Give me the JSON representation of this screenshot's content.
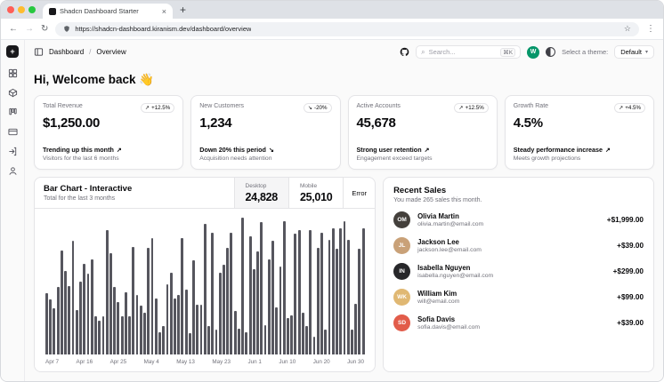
{
  "browser": {
    "tab_title": "Shadcn Dashboard Starter",
    "tab_close": "×",
    "new_tab": "+",
    "back": "←",
    "forward": "→",
    "reload": "↻",
    "bookmark": "☆",
    "menu": "⋮",
    "url": "https://shadcn-dashboard.kiranism.dev/dashboard/overview"
  },
  "rail": {
    "logo_glyph": "+"
  },
  "header": {
    "breadcrumb_section": "Dashboard",
    "breadcrumb_sep": "/",
    "breadcrumb_page": "Overview",
    "search_glyph": "⌕",
    "search_placeholder": "Search...",
    "search_shortcut": "⌘K",
    "avatar_initial": "W",
    "theme_label": "Select a theme:",
    "theme_value": "Default",
    "theme_caret": "▾"
  },
  "greeting": "Hi, Welcome back 👋",
  "stats": [
    {
      "label": "Total Revenue",
      "badge": "+12.5%",
      "trend_icon": "↗",
      "value": "$1,250.00",
      "line1": "Trending up this month",
      "line2": "Visitors for the last 6 months"
    },
    {
      "label": "New Customers",
      "badge": "-20%",
      "trend_icon": "↘",
      "value": "1,234",
      "line1": "Down 20% this period",
      "line2": "Acquisition needs attention"
    },
    {
      "label": "Active Accounts",
      "badge": "+12.5%",
      "trend_icon": "↗",
      "value": "45,678",
      "line1": "Strong user retention",
      "line2": "Engagement exceed targets"
    },
    {
      "label": "Growth Rate",
      "badge": "+4.5%",
      "trend_icon": "↗",
      "value": "4.5%",
      "line1": "Steady performance increase",
      "line2": "Meets growth projections"
    }
  ],
  "chart_card": {
    "title": "Bar Chart - Interactive",
    "subtitle": "Total for the last 3 months",
    "toggles": [
      {
        "label": "Desktop",
        "value": "24,828",
        "active": true
      },
      {
        "label": "Mobile",
        "value": "25,010",
        "active": false
      }
    ],
    "error_label": "Error"
  },
  "chart_data": {
    "type": "bar",
    "title": "Bar Chart - Interactive",
    "series_shown": "Desktop",
    "x_range": "Apr 7 – Jun 30",
    "x_tick_labels": [
      "Apr 7",
      "Apr 16",
      "Apr 25",
      "May 4",
      "May 13",
      "May 23",
      "Jun 1",
      "Jun 10",
      "Jun 20",
      "Jun 30"
    ],
    "values": [
      222,
      197,
      167,
      242,
      373,
      301,
      245,
      409,
      159,
      261,
      327,
      292,
      342,
      137,
      120,
      138,
      446,
      364,
      243,
      189,
      137,
      224,
      138,
      387,
      215,
      175,
      151,
      385,
      420,
      202,
      79,
      102,
      252,
      294,
      201,
      213,
      420,
      233,
      78,
      340,
      178,
      178,
      470,
      103,
      439,
      88,
      294,
      323,
      385,
      438,
      155,
      92,
      492,
      81,
      426,
      307,
      371,
      475,
      107,
      341,
      408,
      169,
      317,
      480,
      132,
      141,
      434,
      448,
      149,
      103,
      446,
      64,
      385,
      438,
      88,
      413,
      454,
      380,
      454,
      480,
      413,
      88,
      183,
      380,
      454
    ],
    "bar_color": "#56565e",
    "grid": false,
    "legend": "none"
  },
  "recent_sales": {
    "title": "Recent Sales",
    "subtitle": "You made 265 sales this month.",
    "sales": [
      {
        "name": "Olivia Martin",
        "email": "olivia.martin@email.com",
        "amount": "+$1,999.00",
        "initials": "OM",
        "color": "#44403c"
      },
      {
        "name": "Jackson Lee",
        "email": "jackson.lee@email.com",
        "amount": "+$39.00",
        "initials": "JL",
        "color": "#c9a178"
      },
      {
        "name": "Isabella Nguyen",
        "email": "isabella.nguyen@email.com",
        "amount": "+$299.00",
        "initials": "IN",
        "color": "#27272a"
      },
      {
        "name": "William Kim",
        "email": "will@email.com",
        "amount": "+$99.00",
        "initials": "WK",
        "color": "#e0b873"
      },
      {
        "name": "Sofia Davis",
        "email": "sofia.davis@email.com",
        "amount": "+$39.00",
        "initials": "SD",
        "color": "#e25c4a"
      }
    ]
  },
  "colors": {
    "accent_green": "#059669",
    "card_border": "#e4e4e7",
    "muted_text": "#71717a",
    "text": "#09090b"
  }
}
